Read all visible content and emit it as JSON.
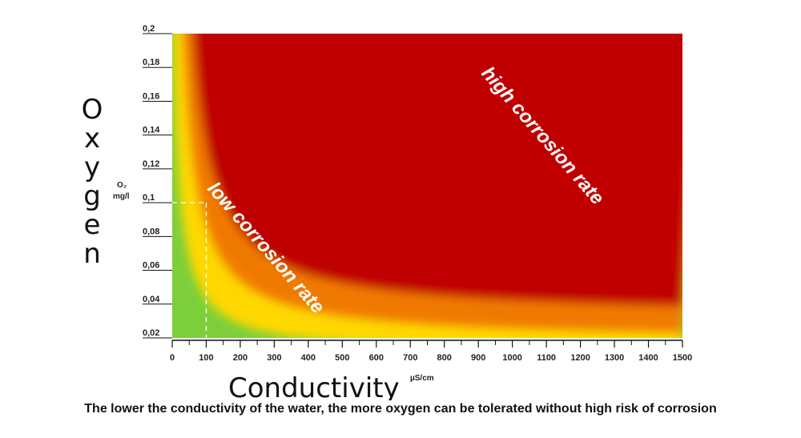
{
  "chart_data": {
    "type": "heatmap",
    "title": "",
    "xlabel": "Conductivity",
    "xunit": "µS/cm",
    "ylabel": "Oxygen",
    "yunit_top": "O₂",
    "yunit_bottom": "mg/l",
    "xlim": [
      0,
      1500
    ],
    "ylim": [
      0.02,
      0.2
    ],
    "x_ticks": [
      0,
      100,
      200,
      300,
      400,
      500,
      600,
      700,
      800,
      900,
      1000,
      1100,
      1200,
      1300,
      1400,
      1500
    ],
    "x_tick_labels": [
      "0",
      "100",
      "200",
      "300",
      "400",
      "500",
      "600",
      "700",
      "800",
      "900",
      "1000",
      "1100",
      "1200",
      "1300",
      "1400",
      "1500"
    ],
    "y_ticks": [
      0.02,
      0.04,
      0.06,
      0.08,
      0.1,
      0.12,
      0.14,
      0.16,
      0.18,
      0.2
    ],
    "y_tick_labels": [
      "0,02",
      "0,04",
      "0,06",
      "0,08",
      "0,1",
      "0,12",
      "0,14",
      "0,16",
      "0,18",
      "0,2"
    ],
    "zones": [
      {
        "label": "low corrosion rate",
        "color": "#ffd800"
      },
      {
        "label": "high corrosion rate",
        "color": "#c00000"
      }
    ],
    "safe_color": "#7ccf3a",
    "reference_point": {
      "x": 100,
      "y": 0.1
    },
    "caption": "The lower the conductivity of the water, the more oxygen can be tolerated without high risk of corrosion"
  }
}
